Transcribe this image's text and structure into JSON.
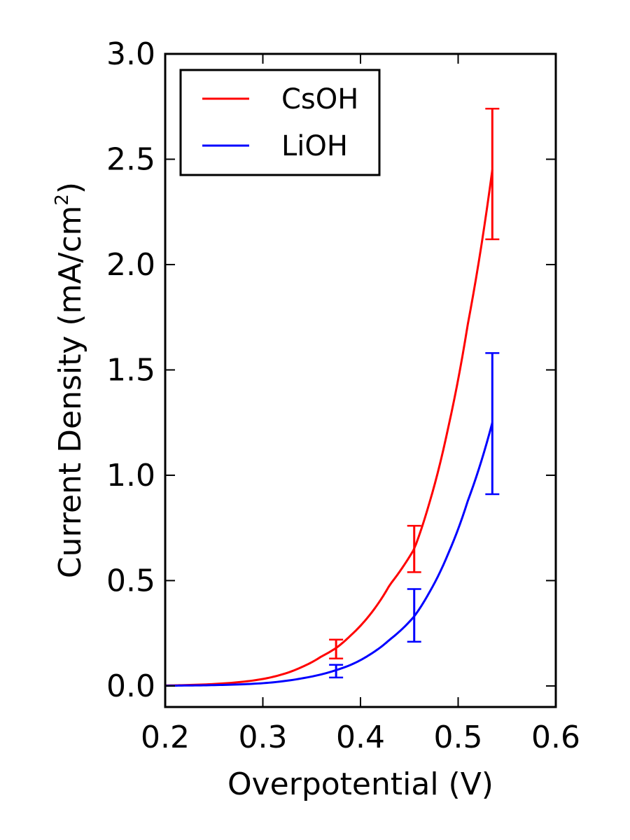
{
  "chart_data": {
    "type": "line",
    "title": "",
    "xlabel": "Overpotential (V)",
    "ylabel_main": "Current Density (mA/cm",
    "ylabel_sup": "2",
    "ylabel_close": ")",
    "xlim": [
      0.2,
      0.6
    ],
    "ylim": [
      -0.1,
      3.0
    ],
    "x_ticks": [
      0.2,
      0.3,
      0.4,
      0.5,
      0.6
    ],
    "x_tick_labels": [
      "0.2",
      "0.3",
      "0.4",
      "0.5",
      "0.6"
    ],
    "y_ticks": [
      0.0,
      0.5,
      1.0,
      1.5,
      2.0,
      2.5,
      3.0
    ],
    "y_tick_labels": [
      "0.0",
      "0.5",
      "1.0",
      "1.5",
      "2.0",
      "2.5",
      "3.0"
    ],
    "grid": false,
    "legend_position": "upper-left",
    "series": [
      {
        "name": "CsOH",
        "color": "#ff0000",
        "x": [
          0.2,
          0.22,
          0.24,
          0.26,
          0.28,
          0.3,
          0.32,
          0.34,
          0.36,
          0.375,
          0.39,
          0.41,
          0.43,
          0.455,
          0.47,
          0.49,
          0.51,
          0.535
        ],
        "y": [
          0.002,
          0.004,
          0.007,
          0.012,
          0.02,
          0.033,
          0.055,
          0.09,
          0.14,
          0.18,
          0.24,
          0.34,
          0.48,
          0.65,
          0.86,
          1.23,
          1.72,
          2.45
        ],
        "error_bars": [
          {
            "x": 0.375,
            "low": 0.13,
            "high": 0.22
          },
          {
            "x": 0.455,
            "low": 0.54,
            "high": 0.76
          },
          {
            "x": 0.535,
            "low": 2.12,
            "high": 2.74
          }
        ]
      },
      {
        "name": "LiOH",
        "color": "#0000ff",
        "x": [
          0.2,
          0.22,
          0.24,
          0.26,
          0.28,
          0.3,
          0.32,
          0.34,
          0.36,
          0.375,
          0.39,
          0.41,
          0.43,
          0.455,
          0.47,
          0.49,
          0.51,
          0.535
        ],
        "y": [
          0.001,
          0.002,
          0.003,
          0.005,
          0.008,
          0.013,
          0.022,
          0.036,
          0.055,
          0.075,
          0.1,
          0.15,
          0.22,
          0.33,
          0.44,
          0.63,
          0.88,
          1.25
        ],
        "error_bars": [
          {
            "x": 0.375,
            "low": 0.04,
            "high": 0.1
          },
          {
            "x": 0.455,
            "low": 0.21,
            "high": 0.46
          },
          {
            "x": 0.535,
            "low": 0.91,
            "high": 1.58
          }
        ]
      }
    ]
  }
}
